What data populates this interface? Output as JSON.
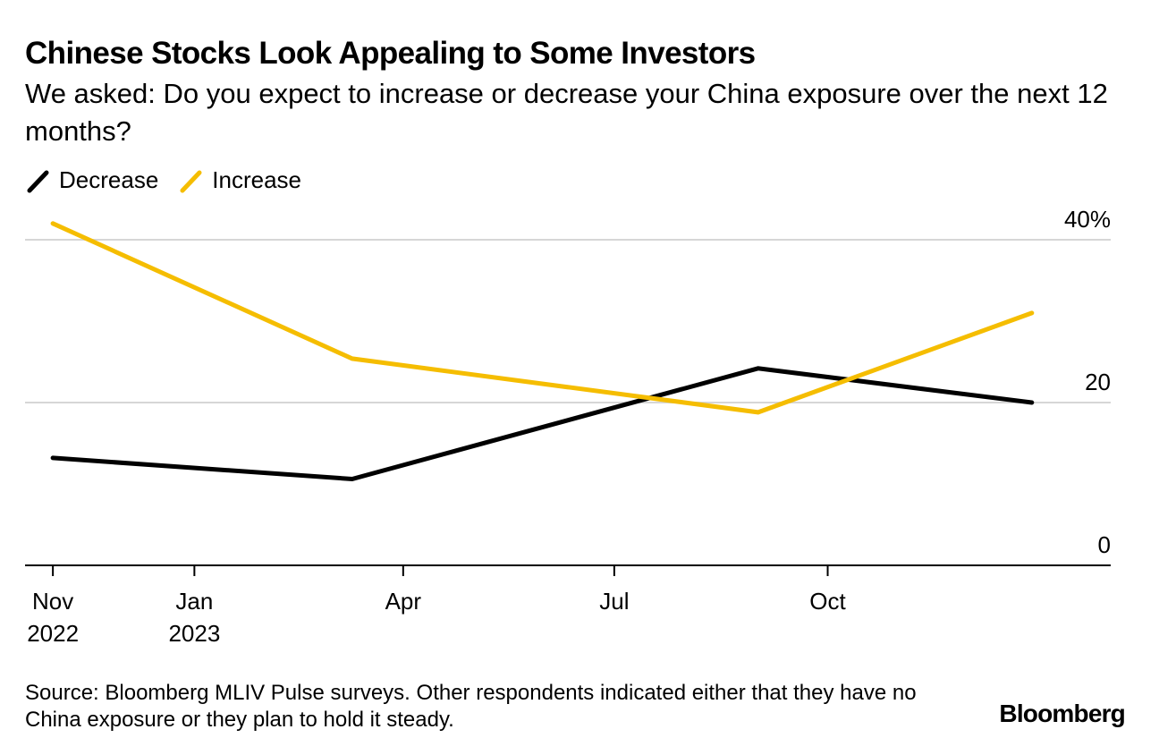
{
  "chart_data": {
    "type": "line",
    "title": "Chinese Stocks Look Appealing to Some Investors",
    "subtitle": "We asked: Do you expect to increase or decrease your China exposure over the next 12 months?",
    "xlabel": "",
    "ylabel": "",
    "ylim": [
      0,
      40
    ],
    "y_ticks": [
      {
        "value": 40,
        "label": "40%"
      },
      {
        "value": 20,
        "label": "20"
      },
      {
        "value": 0,
        "label": "0"
      }
    ],
    "x_domain": [
      "2022-10-20",
      "2024-01-31"
    ],
    "x_ticks": [
      {
        "date": "2022-11-01",
        "line1": "Nov",
        "line2": "2022"
      },
      {
        "date": "2023-01-01",
        "line1": "Jan",
        "line2": "2023"
      },
      {
        "date": "2023-04-01",
        "line1": "Apr",
        "line2": ""
      },
      {
        "date": "2023-07-01",
        "line1": "Jul",
        "line2": ""
      },
      {
        "date": "2023-10-01",
        "line1": "Oct",
        "line2": ""
      }
    ],
    "grid": true,
    "series": [
      {
        "name": "Decrease",
        "color": "#000000",
        "points": [
          {
            "date": "2022-11-01",
            "value": 13.2
          },
          {
            "date": "2023-03-10",
            "value": 10.6
          },
          {
            "date": "2023-09-01",
            "value": 24.2
          },
          {
            "date": "2023-12-28",
            "value": 20.0
          }
        ]
      },
      {
        "name": "Increase",
        "color": "#f5bd00",
        "points": [
          {
            "date": "2022-11-01",
            "value": 42.0
          },
          {
            "date": "2023-03-10",
            "value": 25.4
          },
          {
            "date": "2023-09-01",
            "value": 18.8
          },
          {
            "date": "2023-12-28",
            "value": 31.0
          }
        ]
      }
    ],
    "legend": [
      "Decrease",
      "Increase"
    ],
    "legend_position": "top-left"
  },
  "source": "Source: Bloomberg MLIV Pulse surveys. Other respondents indicated either that they have no China exposure or they plan to hold it steady.",
  "brand": "Bloomberg",
  "legend_swatch_icon": "diagonal-stroke-icon"
}
